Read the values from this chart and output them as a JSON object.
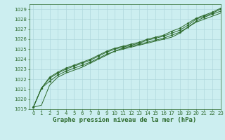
{
  "bg_color": "#cceef0",
  "grid_color": "#b0d8dc",
  "line_color": "#2d6a2d",
  "title": "Graphe pression niveau de la mer (hPa)",
  "xlim": [
    -0.5,
    23
  ],
  "ylim": [
    1019,
    1029.5
  ],
  "xticks": [
    0,
    1,
    2,
    3,
    4,
    5,
    6,
    7,
    8,
    9,
    10,
    11,
    12,
    13,
    14,
    15,
    16,
    17,
    18,
    19,
    20,
    21,
    22,
    23
  ],
  "yticks": [
    1019,
    1020,
    1021,
    1022,
    1023,
    1024,
    1025,
    1026,
    1027,
    1028,
    1029
  ],
  "series": [
    [
      1019.2,
      1019.4,
      1021.4,
      1022.2,
      1022.6,
      1022.9,
      1023.2,
      1023.6,
      1024.0,
      1024.4,
      1024.8,
      1025.0,
      1025.2,
      1025.4,
      1025.6,
      1025.8,
      1026.0,
      1026.2,
      1026.6,
      1027.2,
      1027.7,
      1028.0,
      1028.3,
      1028.6
    ],
    [
      1019.2,
      1021.1,
      1021.8,
      1022.4,
      1022.8,
      1023.1,
      1023.4,
      1023.7,
      1024.1,
      1024.5,
      1024.8,
      1025.1,
      1025.3,
      1025.5,
      1025.7,
      1025.9,
      1026.1,
      1026.4,
      1026.7,
      1027.2,
      1027.8,
      1028.2,
      1028.5,
      1028.8
    ],
    [
      1019.2,
      1021.1,
      1022.1,
      1022.6,
      1023.0,
      1023.3,
      1023.6,
      1023.9,
      1024.3,
      1024.7,
      1025.0,
      1025.2,
      1025.4,
      1025.6,
      1025.9,
      1026.1,
      1026.3,
      1026.6,
      1026.9,
      1027.4,
      1028.0,
      1028.3,
      1028.6,
      1029.0
    ],
    [
      1019.2,
      1021.1,
      1022.2,
      1022.7,
      1023.1,
      1023.4,
      1023.7,
      1024.0,
      1024.4,
      1024.8,
      1025.1,
      1025.3,
      1025.5,
      1025.7,
      1026.0,
      1026.2,
      1026.4,
      1026.8,
      1027.1,
      1027.6,
      1028.1,
      1028.4,
      1028.7,
      1029.1
    ]
  ],
  "marker_series": [
    1,
    2,
    3
  ],
  "title_fontsize": 6.5,
  "tick_fontsize": 5.0,
  "linewidth": 0.7,
  "markersize": 1.5
}
